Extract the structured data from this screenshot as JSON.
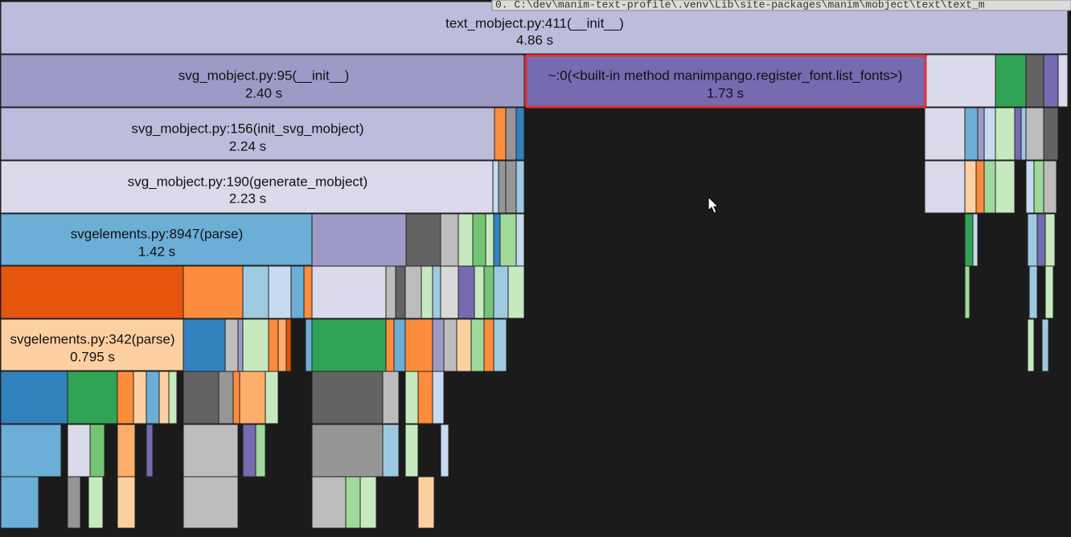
{
  "tooltip": "0. C:\\dev\\manim-text-profile\\.venv\\Lib\\site-packages\\manim\\mobject\\text\\text_m",
  "nodes": [
    {
      "label": "text_mobject.py:411(__init__)",
      "time": "4.86 s"
    },
    {
      "label": "svg_mobject.py:95(__init__)",
      "time": "2.40 s"
    },
    {
      "label": "~:0(<built-in method manimpango.register_font.list_fonts>)",
      "time": "1.73 s"
    },
    {
      "label": "svg_mobject.py:156(init_svg_mobject)",
      "time": "2.24 s"
    },
    {
      "label": "svg_mobject.py:190(generate_mobject)",
      "time": "2.23 s"
    },
    {
      "label": "svgelements.py:8947(parse)",
      "time": "1.42 s"
    },
    {
      "label": "svgelements.py:342(parse)",
      "time": "0.795 s"
    }
  ]
}
